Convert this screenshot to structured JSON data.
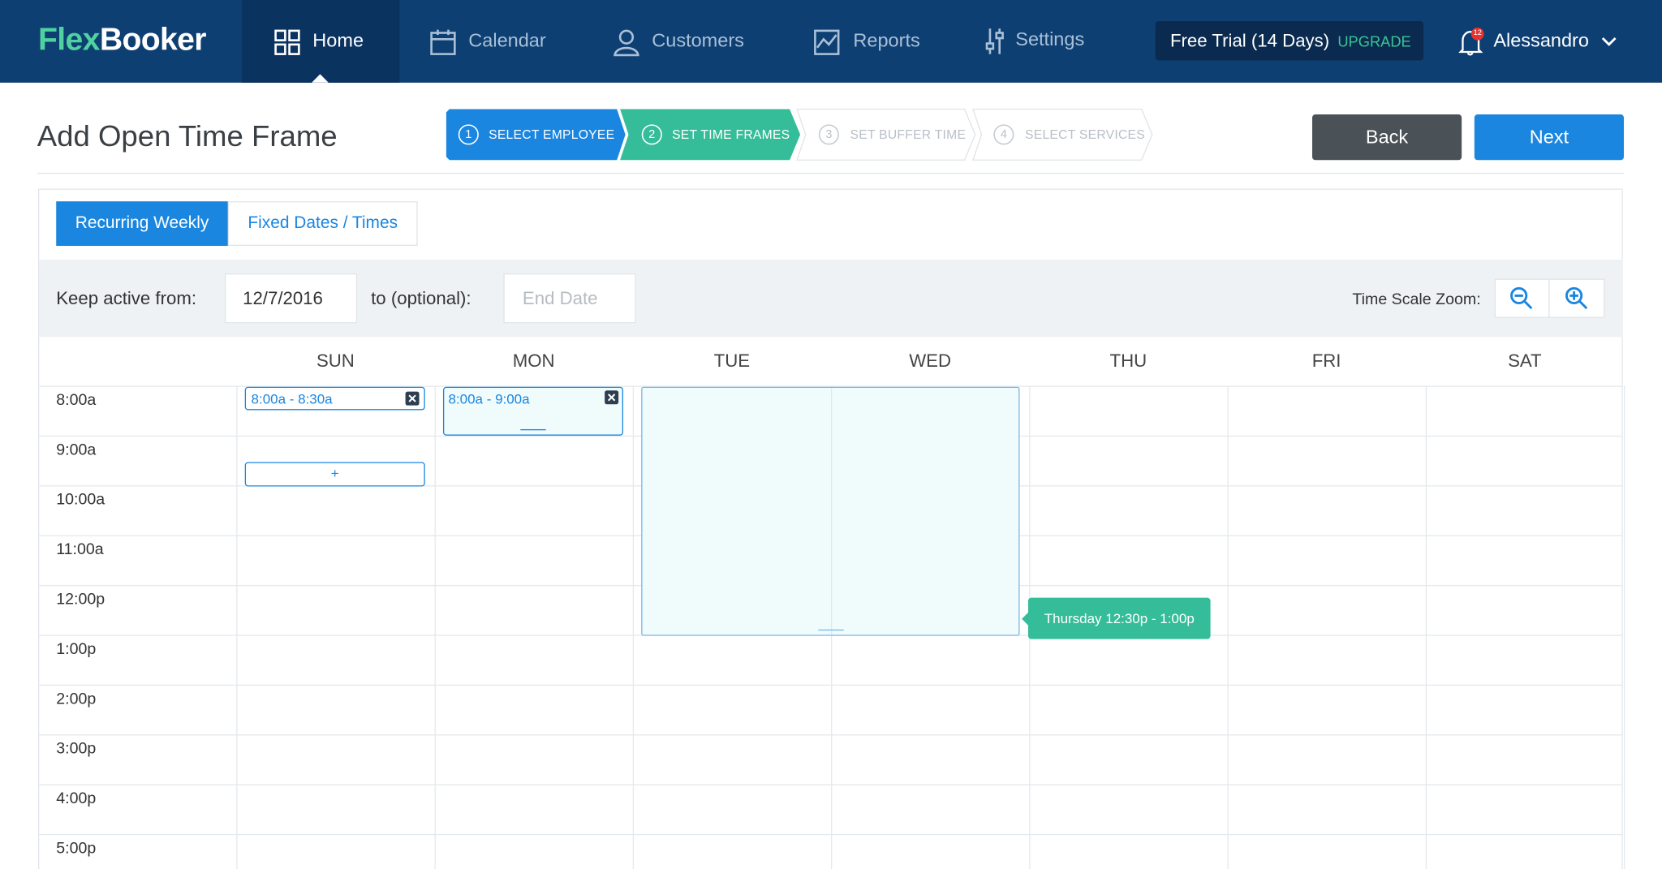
{
  "header": {
    "brand_a": "Flex",
    "brand_b": "Booker",
    "nav": [
      "Home",
      "Calendar",
      "Customers",
      "Reports",
      "Settings"
    ],
    "trial": "Free Trial (14 Days)",
    "upgrade": "UPGRADE",
    "notifications": "12",
    "user": "Alessandro"
  },
  "page": {
    "title": "Add Open Time Frame",
    "steps": [
      {
        "number": "1",
        "label": "SELECT EMPLOYEE"
      },
      {
        "number": "2",
        "label": "SET TIME FRAMES"
      },
      {
        "number": "3",
        "label": "SET BUFFER TIME"
      },
      {
        "number": "4",
        "label": "SELECT SERVICES"
      }
    ],
    "back": "Back",
    "next": "Next"
  },
  "tabs": [
    "Recurring Weekly",
    "Fixed Dates / Times"
  ],
  "filters": {
    "from_label": "Keep active from:",
    "from_value": "12/7/2016",
    "to_label": "to (optional):",
    "to_placeholder": "End Date",
    "zoom_label": "Time Scale Zoom:"
  },
  "calendar": {
    "days": [
      "SUN",
      "MON",
      "TUE",
      "WED",
      "THU",
      "FRI",
      "SAT"
    ],
    "times": [
      "8:00a",
      "9:00a",
      "10:00a",
      "11:00a",
      "12:00p",
      "1:00p",
      "2:00p",
      "3:00p",
      "4:00p",
      "5:00p"
    ],
    "events": [
      {
        "label": "8:00a - 8:30a"
      },
      {
        "label": "8:00a - 9:00a"
      }
    ],
    "add": "+",
    "tooltip": "Thursday 12:30p - 1:00p"
  }
}
